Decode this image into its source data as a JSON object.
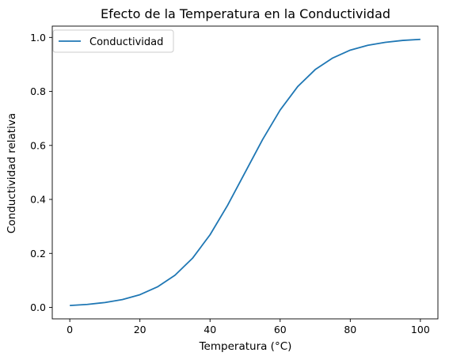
{
  "chart_data": {
    "type": "line",
    "title": "Efecto de la Temperatura en la Conductividad",
    "xlabel": "Temperatura (°C)",
    "ylabel": "Conductividad relativa",
    "xlim": [
      -5,
      105
    ],
    "ylim": [
      -0.0425,
      1.042
    ],
    "xticks": [
      0,
      20,
      40,
      60,
      80,
      100
    ],
    "xtick_labels": [
      "0",
      "20",
      "40",
      "60",
      "80",
      "100"
    ],
    "yticks": [
      0.0,
      0.2,
      0.4,
      0.6,
      0.8,
      1.0
    ],
    "ytick_labels": [
      "0.0",
      "0.2",
      "0.4",
      "0.6",
      "0.8",
      "1.0"
    ],
    "grid": false,
    "legend_position": "upper-left",
    "series": [
      {
        "name": "Conductividad",
        "color": "#1f77b4",
        "x": [
          0,
          5,
          10,
          15,
          20,
          25,
          30,
          35,
          40,
          45,
          50,
          55,
          60,
          65,
          70,
          75,
          80,
          85,
          90,
          95,
          100
        ],
        "y": [
          0.007,
          0.011,
          0.018,
          0.029,
          0.047,
          0.076,
          0.119,
          0.182,
          0.269,
          0.378,
          0.5,
          0.622,
          0.731,
          0.818,
          0.881,
          0.924,
          0.953,
          0.971,
          0.982,
          0.989,
          0.993
        ]
      }
    ]
  }
}
